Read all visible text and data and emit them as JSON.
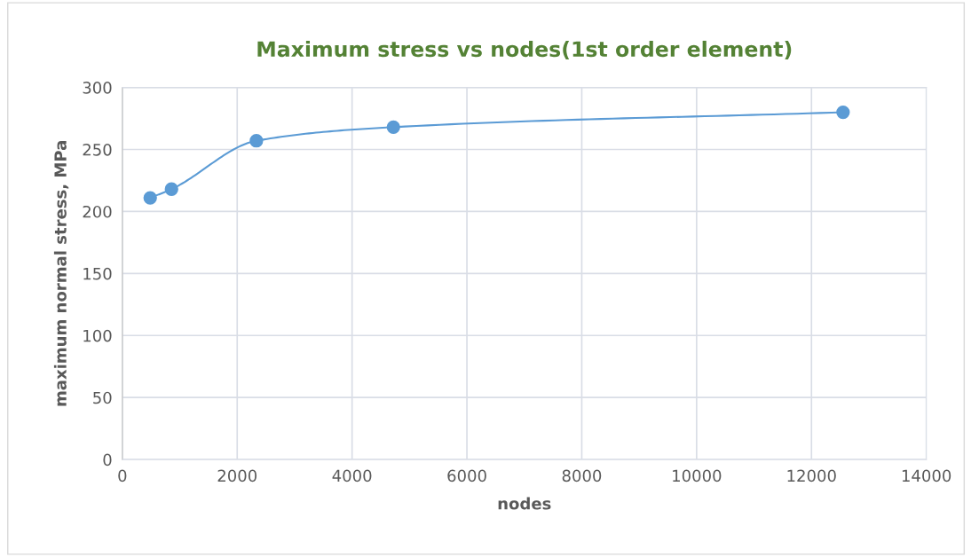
{
  "chart_data": {
    "type": "line",
    "title": "Maximum stress vs nodes(1st order element)",
    "xlabel": "nodes",
    "ylabel": "maximum normal stress, MPa",
    "x": [
      485,
      856,
      2334,
      4720,
      12550
    ],
    "series": [
      {
        "color": "#5b9bd5",
        "values": [
          211,
          218,
          257,
          268,
          280
        ]
      }
    ],
    "xlim": [
      0,
      14000
    ],
    "xticks": [
      0,
      2000,
      4000,
      6000,
      8000,
      10000,
      12000,
      14000
    ],
    "ylim": [
      0,
      300
    ],
    "yticks": [
      0,
      50,
      100,
      150,
      200,
      250,
      300
    ],
    "grid": true,
    "marker": "circle",
    "line_style": "solid",
    "legend": false
  }
}
